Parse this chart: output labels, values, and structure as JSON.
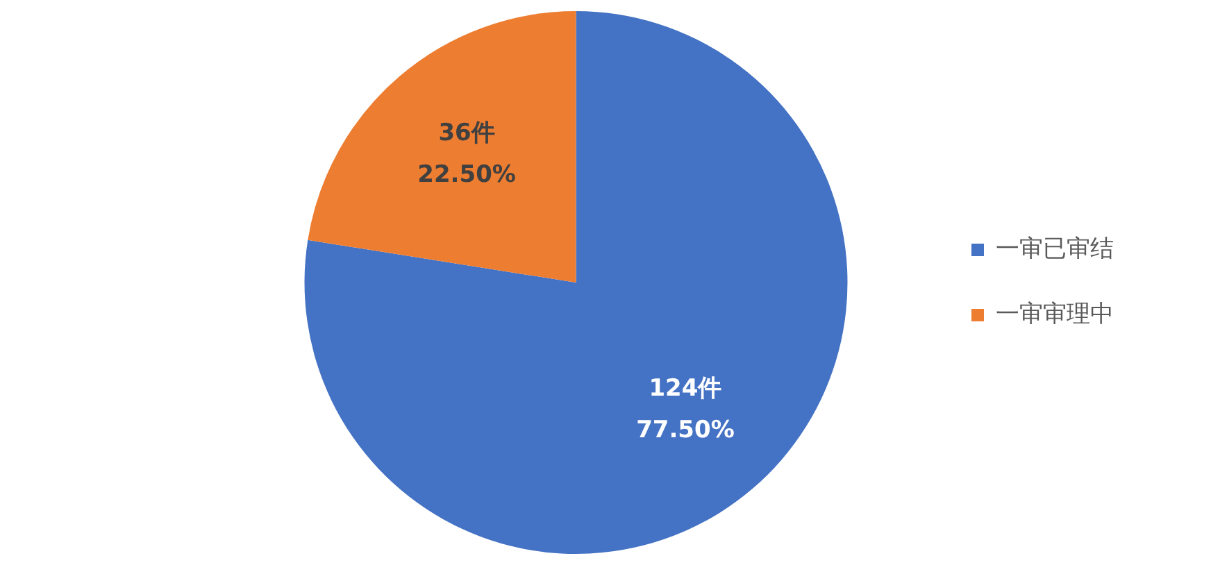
{
  "chart_data": {
    "type": "pie",
    "categories": [
      "一审已审结",
      "一审审理中"
    ],
    "values": [
      124,
      36
    ],
    "colors": [
      "#4472c4",
      "#ed7d31"
    ],
    "value_labels": [
      "124件\n77.50%",
      "36件\n22.50%"
    ],
    "legend": "right"
  }
}
